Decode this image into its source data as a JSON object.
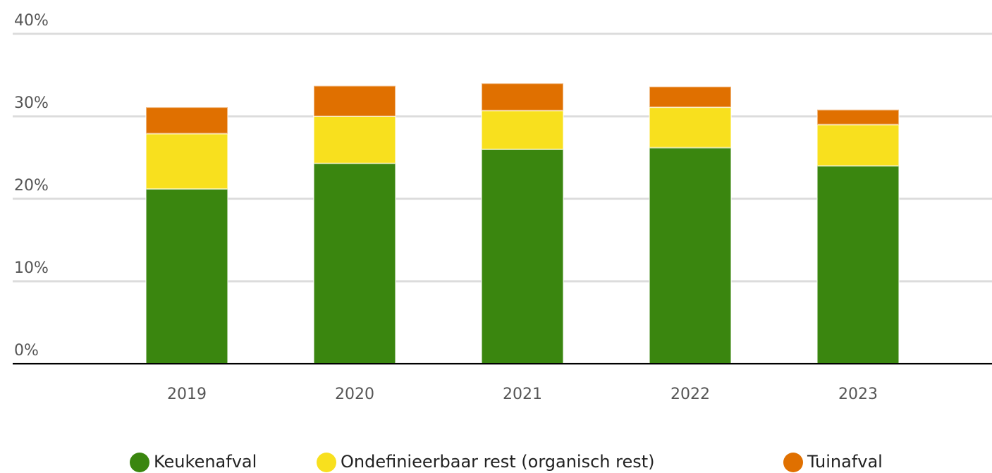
{
  "chart_data": {
    "type": "bar",
    "stacked": true,
    "categories": [
      "2019",
      "2020",
      "2021",
      "2022",
      "2023"
    ],
    "series": [
      {
        "name": "Keukenafval",
        "color": "#3a860f",
        "values": [
          21.2,
          24.3,
          26.0,
          26.2,
          24.0
        ]
      },
      {
        "name": "Ondefinieerbaar rest (organisch rest)",
        "color": "#f8e01e",
        "values": [
          6.7,
          5.7,
          4.7,
          4.9,
          5.0
        ]
      },
      {
        "name": "Tuinafval",
        "color": "#e07000",
        "values": [
          3.2,
          3.7,
          3.3,
          2.5,
          1.8
        ]
      }
    ],
    "ylim": [
      0,
      40
    ],
    "yticks": [
      {
        "value": 0,
        "label": "0%"
      },
      {
        "value": 10,
        "label": "10%"
      },
      {
        "value": 20,
        "label": "20%"
      },
      {
        "value": 30,
        "label": "30%"
      },
      {
        "value": 40,
        "label": "40%"
      }
    ],
    "grid": true,
    "legend": "bottom"
  }
}
